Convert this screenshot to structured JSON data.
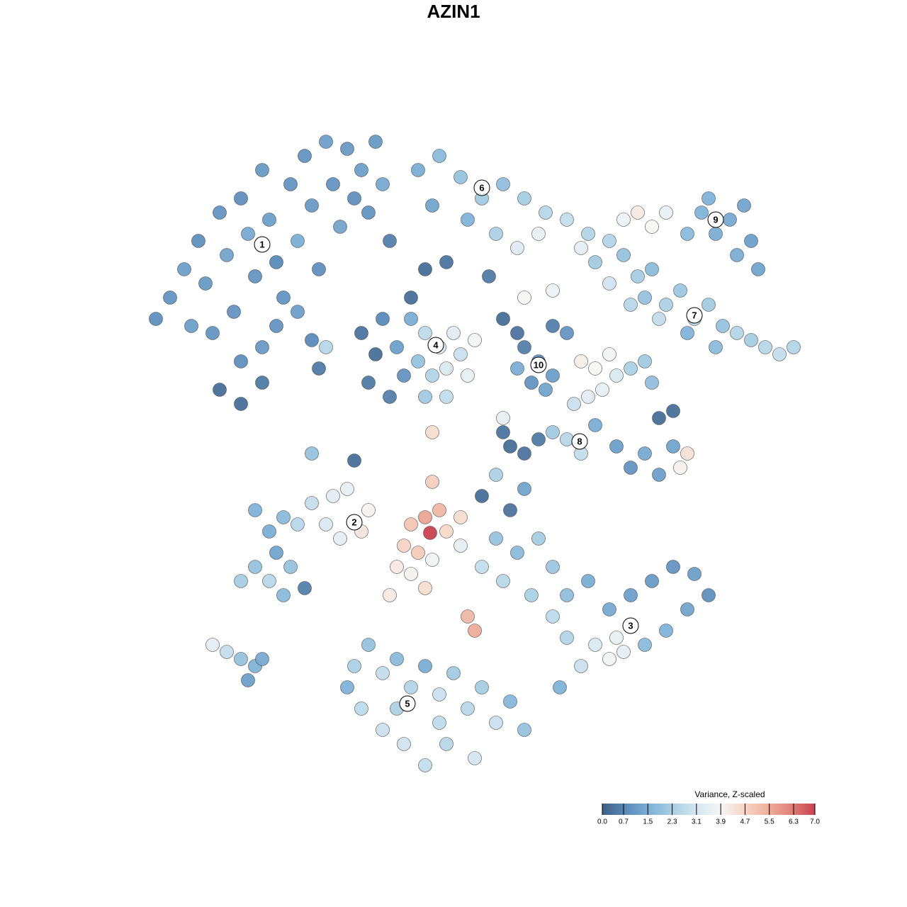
{
  "chart_data": {
    "type": "scatter",
    "title": "AZIN1",
    "colorbar_title": "Variance, Z-scaled",
    "clim": [
      0,
      7
    ],
    "cticks": [
      {
        "value": 0,
        "label": "0.0"
      },
      0.7,
      1.5,
      2.3,
      3.1,
      3.9,
      4.7,
      5.5,
      6.3,
      {
        "value": 7,
        "label": "7.0"
      }
    ],
    "colorscale": [
      "#3f5f86",
      "#5a8ab8",
      "#7fb1d7",
      "#a9cfe4",
      "#d6e7f1",
      "#f5f5f5",
      "#f7d6c6",
      "#eeb09c",
      "#e07f7a",
      "#c9414f"
    ],
    "xlim": [
      -64,
      64
    ],
    "ylim": [
      -64,
      64
    ],
    "clusters": [
      {
        "label": "1",
        "x": -27,
        "y": 29.5
      },
      {
        "label": "2",
        "x": -14,
        "y": -9.7
      },
      {
        "label": "3",
        "x": 25,
        "y": -24.3
      },
      {
        "label": "4",
        "x": -2.5,
        "y": 15.3
      },
      {
        "label": "5",
        "x": -6.5,
        "y": -35.3
      },
      {
        "label": "6",
        "x": 4,
        "y": 37.5
      },
      {
        "label": "7",
        "x": 34,
        "y": 19.5
      },
      {
        "label": "8",
        "x": 17.8,
        "y": 1.7
      },
      {
        "label": "9",
        "x": 37,
        "y": 33
      },
      {
        "label": "10",
        "x": 12,
        "y": 12.5
      }
    ],
    "x": [
      -40,
      -38,
      -36,
      -35,
      -33,
      -32,
      -31,
      -30,
      -29,
      -28,
      -27,
      -26,
      -25,
      -24,
      -23,
      -22,
      -21,
      -20,
      -19,
      -18,
      -17,
      -16,
      -15,
      -14,
      -13,
      -12,
      -11,
      -10,
      -9,
      -34,
      -30,
      -27,
      -33,
      -30,
      -27,
      -37,
      -42,
      -25,
      -22,
      -20,
      -5,
      -2,
      1,
      4,
      7,
      10,
      13,
      16,
      19,
      -3,
      2,
      6,
      9,
      12,
      -4,
      -1,
      5,
      20,
      22,
      24,
      26,
      25,
      28,
      22,
      18,
      24,
      26,
      28,
      30,
      33,
      35,
      37,
      39,
      41,
      42,
      40,
      43,
      36,
      27,
      30,
      32,
      34,
      36,
      38,
      40,
      42,
      44,
      46,
      48,
      37,
      33,
      29,
      18,
      20,
      22,
      21,
      19,
      23,
      17,
      25,
      27,
      28,
      7,
      9,
      14,
      16,
      10,
      14,
      -13,
      -11,
      -12,
      -9,
      -6,
      -4,
      -2,
      0,
      1,
      -1,
      -3,
      -5,
      -8,
      -7,
      -4,
      -1,
      2,
      3,
      -10,
      -6,
      10,
      12,
      14,
      11,
      13,
      9,
      8,
      10,
      12,
      14,
      16,
      18,
      20,
      23,
      25,
      27,
      29,
      31,
      32,
      33,
      29,
      31,
      7,
      6,
      -20,
      -17,
      -15,
      -18,
      -16,
      -13,
      -12,
      -22,
      -24,
      -26,
      -28,
      -25,
      -28,
      -30,
      -26,
      -23,
      -21,
      -24,
      -3.3,
      -4,
      -6,
      -2,
      -7,
      -5,
      -1,
      1,
      -8,
      -6,
      -4,
      -3,
      1,
      2,
      3,
      -9,
      -3,
      4,
      8,
      10,
      6,
      9,
      12,
      14,
      16,
      19,
      22,
      25,
      28,
      31,
      34,
      36,
      33,
      30,
      27,
      24,
      22,
      20,
      18,
      16,
      14,
      11,
      7,
      4,
      23,
      15,
      -14,
      -12,
      -10,
      -8,
      -6,
      -4,
      -2,
      0,
      2,
      4,
      6,
      -13,
      -10,
      -7,
      -4,
      -1,
      3,
      -8,
      -2,
      8,
      10,
      -15,
      -34,
      -32,
      -30,
      -28,
      -27,
      -29,
      -14,
      -20,
      -19,
      -18,
      7,
      -3
    ],
    "y": [
      22,
      26,
      30,
      24,
      34,
      28,
      20,
      36,
      31,
      25,
      40,
      33,
      27,
      22,
      38,
      30,
      42,
      35,
      26,
      44,
      38,
      32,
      43,
      36,
      40,
      34,
      44,
      38,
      30,
      17,
      13,
      15,
      9,
      7,
      10,
      18,
      19,
      18,
      20,
      16,
      40,
      42,
      39,
      36,
      38,
      36,
      34,
      33,
      31,
      35,
      33,
      31,
      29,
      31,
      26,
      27,
      25,
      27,
      30,
      28,
      25,
      21,
      26,
      24,
      29,
      33,
      34,
      32,
      34,
      31,
      34,
      31,
      33,
      35,
      30,
      28,
      26,
      36,
      22,
      21,
      23,
      19,
      21,
      18,
      17,
      16,
      15,
      14,
      15,
      15,
      17,
      19,
      13,
      12,
      14,
      9,
      8,
      11,
      7,
      12,
      13,
      10,
      19,
      17,
      18,
      17,
      22,
      23,
      17,
      14,
      10,
      8,
      19,
      17,
      15,
      17,
      14,
      12,
      11,
      13,
      15,
      11,
      8,
      8,
      11,
      16,
      19,
      22,
      15,
      13,
      11,
      10,
      9,
      12,
      1,
      0,
      2,
      3,
      2,
      0,
      4,
      1,
      -2,
      0,
      -3,
      1,
      -2,
      0,
      5,
      6,
      3,
      -3,
      -7,
      -6,
      -5,
      -10,
      -12,
      -11,
      -8,
      -10,
      -9,
      -11,
      -8,
      -14,
      -16,
      -18,
      -18,
      -16,
      -19,
      -20,
      -11.2,
      -9,
      -10,
      -8,
      -13,
      -14,
      -11,
      -9,
      -16,
      -17,
      -19,
      -15,
      -13,
      -23,
      -25,
      -20,
      -4,
      -6,
      -8,
      -5,
      -12,
      -14,
      -12,
      -16,
      -20,
      -18,
      -22,
      -20,
      -18,
      -16,
      -17,
      -20,
      -22,
      -25,
      -27,
      -28,
      -29,
      -27,
      -30,
      -26,
      -23,
      -20,
      -18,
      -16,
      -26,
      -33,
      -30,
      -27,
      -31,
      -29,
      -33,
      -30,
      -34,
      -31,
      -36,
      -33,
      -38,
      -36,
      -39,
      -41,
      -44,
      -41,
      -43,
      -36,
      -38,
      -35,
      -39,
      -33,
      -27,
      -28,
      -29,
      -30,
      -29,
      -32,
      -1,
      0,
      12,
      15,
      5,
      3
    ],
    "values": [
      1.0,
      1.2,
      0.9,
      1.1,
      1.0,
      1.3,
      1.0,
      0.9,
      1.4,
      1.0,
      1.1,
      1.2,
      0.8,
      1.0,
      1.0,
      1.5,
      1.0,
      1.1,
      0.9,
      1.2,
      1.0,
      1.3,
      1.1,
      0.9,
      1.2,
      1.0,
      1.1,
      1.4,
      0.6,
      1.0,
      0.9,
      1.1,
      0.3,
      0.3,
      0.5,
      1.2,
      0.9,
      1.0,
      1.2,
      0.8,
      1.5,
      1.8,
      2.0,
      2.2,
      1.9,
      2.3,
      2.6,
      2.8,
      2.5,
      1.3,
      1.6,
      2.4,
      3.3,
      3.6,
      0.3,
      0.4,
      0.5,
      2.2,
      2.5,
      2.0,
      2.3,
      2.6,
      1.8,
      3.0,
      3.5,
      3.7,
      4.2,
      3.9,
      3.6,
      1.8,
      1.6,
      1.5,
      1.4,
      1.3,
      1.2,
      1.5,
      1.3,
      1.6,
      2.0,
      2.4,
      2.1,
      2.6,
      2.2,
      2.0,
      2.5,
      2.3,
      2.6,
      2.8,
      2.5,
      1.8,
      1.6,
      2.8,
      4.1,
      3.9,
      3.8,
      3.6,
      3.4,
      3.2,
      2.9,
      2.4,
      2.2,
      1.9,
      0.3,
      0.4,
      0.6,
      1.0,
      3.9,
      3.7,
      0.4,
      0.3,
      0.5,
      0.6,
      1.5,
      2.7,
      3.1,
      3.4,
      2.9,
      3.2,
      2.5,
      2.0,
      1.2,
      1.0,
      2.2,
      2.8,
      3.6,
      3.8,
      0.8,
      0.3,
      0.6,
      1.0,
      1.2,
      1.0,
      1.3,
      1.5,
      0.3,
      0.4,
      0.5,
      2.2,
      2.6,
      2.8,
      1.5,
      1.2,
      1.0,
      1.4,
      1.2,
      1.3,
      4.0,
      4.4,
      0.3,
      0.3,
      0.4,
      2.4,
      2.8,
      3.4,
      3.6,
      3.2,
      3.5,
      4.3,
      4.0,
      2.6,
      1.8,
      1.5,
      1.6,
      1.3,
      2.0,
      2.3,
      2.6,
      2.0,
      0.6,
      1.8,
      7.0,
      5.6,
      5.0,
      5.3,
      4.7,
      4.9,
      4.6,
      4.5,
      4.2,
      4.0,
      4.5,
      3.8,
      3.5,
      5.3,
      5.5,
      4.2,
      4.8,
      0.3,
      0.4,
      1.3,
      2.0,
      1.8,
      2.3,
      2.1,
      1.9,
      1.5,
      1.4,
      1.2,
      1.1,
      1.0,
      1.2,
      0.9,
      1.3,
      1.6,
      1.8,
      3.5,
      3.8,
      3.2,
      2.9,
      2.5,
      2.7,
      2.4,
      2.6,
      2.8,
      3.6,
      1.6,
      2.4,
      2.0,
      2.8,
      1.8,
      2.5,
      1.5,
      2.9,
      2.2,
      2.6,
      2.3,
      2.9,
      2.7,
      2.9,
      3.0,
      2.8,
      2.6,
      3.1,
      2.4,
      2.7,
      1.7,
      2.0,
      1.6,
      3.5,
      2.8,
      2.0,
      1.6,
      1.4,
      1.2,
      0.3,
      2.0,
      0.5,
      2.6,
      3.6,
      4.5
    ]
  }
}
